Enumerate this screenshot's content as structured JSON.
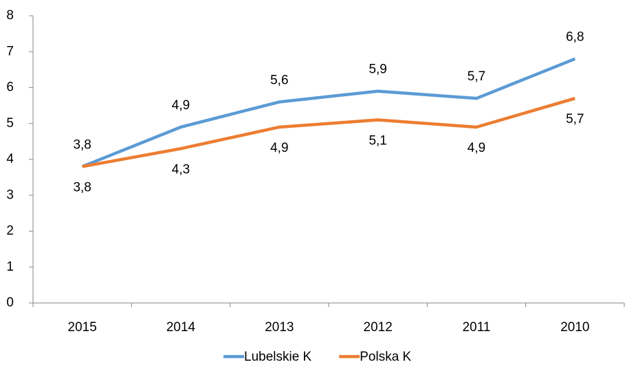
{
  "chart_data": {
    "type": "line",
    "categories": [
      "2015",
      "2014",
      "2013",
      "2012",
      "2011",
      "2010"
    ],
    "series": [
      {
        "name": "Lubelskie K",
        "color": "#5b9bd5",
        "values": [
          3.8,
          4.9,
          5.6,
          5.9,
          5.7,
          6.8
        ],
        "value_labels": [
          "3,8",
          "4,9",
          "5,6",
          "5,9",
          "5,7",
          "6,8"
        ]
      },
      {
        "name": "Polska K",
        "color": "#ed7d31",
        "values": [
          3.8,
          4.3,
          4.9,
          5.1,
          4.9,
          5.7
        ],
        "value_labels": [
          "3,8",
          "4,3",
          "4,9",
          "5,1",
          "4,9",
          "5,7"
        ]
      }
    ],
    "ylim": [
      0,
      8
    ],
    "yticks": [
      0,
      1,
      2,
      3,
      4,
      5,
      6,
      7,
      8
    ],
    "grid": false,
    "legend": "bottom"
  }
}
